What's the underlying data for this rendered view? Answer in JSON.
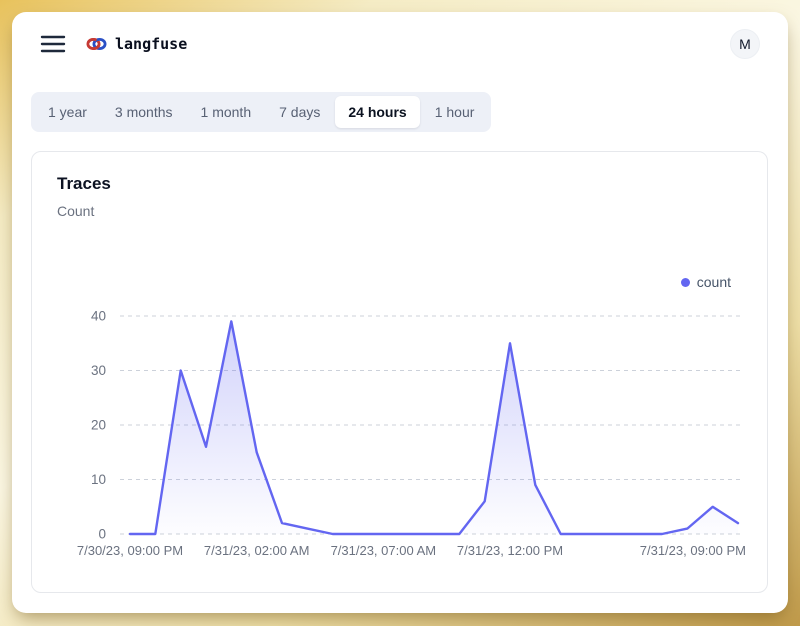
{
  "header": {
    "brand": "langfuse",
    "avatar_label": "M"
  },
  "time_range_tabs": {
    "items": [
      {
        "label": "1 year",
        "selected": false
      },
      {
        "label": "3 months",
        "selected": false
      },
      {
        "label": "1 month",
        "selected": false
      },
      {
        "label": "7 days",
        "selected": false
      },
      {
        "label": "24 hours",
        "selected": true
      },
      {
        "label": "1 hour",
        "selected": false
      }
    ]
  },
  "chart_card": {
    "title": "Traces",
    "subtitle": "Count",
    "legend": [
      {
        "label": "count",
        "color": "#6366f1"
      }
    ]
  },
  "chart_data": {
    "type": "area",
    "title": "Traces",
    "ylabel": "Count",
    "x": [
      "7/30/23, 09:00 PM",
      "7/30/23, 10:00 PM",
      "7/30/23, 11:00 PM",
      "7/31/23, 12:00 AM",
      "7/31/23, 01:00 AM",
      "7/31/23, 02:00 AM",
      "7/31/23, 03:00 AM",
      "7/31/23, 04:00 AM",
      "7/31/23, 05:00 AM",
      "7/31/23, 06:00 AM",
      "7/31/23, 07:00 AM",
      "7/31/23, 08:00 AM",
      "7/31/23, 09:00 AM",
      "7/31/23, 10:00 AM",
      "7/31/23, 11:00 AM",
      "7/31/23, 12:00 PM",
      "7/31/23, 01:00 PM",
      "7/31/23, 02:00 PM",
      "7/31/23, 03:00 PM",
      "7/31/23, 04:00 PM",
      "7/31/23, 05:00 PM",
      "7/31/23, 06:00 PM",
      "7/31/23, 07:00 PM",
      "7/31/23, 08:00 PM",
      "7/31/23, 09:00 PM"
    ],
    "series": [
      {
        "name": "count",
        "color": "#6366f1",
        "values": [
          0,
          0,
          30,
          16,
          39,
          15,
          2,
          1,
          0,
          0,
          0,
          0,
          0,
          0,
          6,
          35,
          9,
          0,
          0,
          0,
          0,
          0,
          1,
          5,
          2
        ]
      }
    ],
    "x_tick_indices": [
      0,
      5,
      10,
      15,
      24
    ],
    "x_tick_labels": [
      "7/30/23, 09:00 PM",
      "7/31/23, 02:00 AM",
      "7/31/23, 07:00 AM",
      "7/31/23, 12:00 PM",
      "7/31/23, 09:00 PM"
    ],
    "yticks": [
      0,
      10,
      20,
      30,
      40
    ],
    "ylim": [
      0,
      40
    ],
    "grid": "horizontal-dashed",
    "legend_position": "top-right",
    "colors": {
      "grid": "#ccd1da",
      "axis_text": "#6b7280",
      "area_top": "rgba(99,102,241,0.28)",
      "area_bottom": "rgba(99,102,241,0.02)"
    }
  }
}
